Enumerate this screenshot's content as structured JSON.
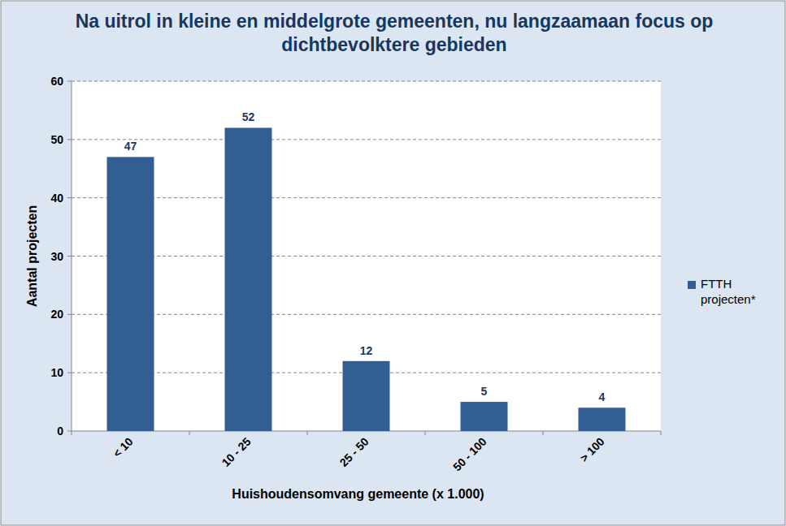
{
  "chart_data": {
    "type": "bar",
    "title": "Na uitrol in kleine en middelgrote gemeenten, nu langzaamaan focus op dichtbevolktere gebieden",
    "x_label": "Huishoudensomvang gemeente (x 1.000)",
    "y_label": "Aantal projecten",
    "categories": [
      "< 10",
      "10 - 25",
      "25 - 50",
      "50 - 100",
      "> 100"
    ],
    "series": [
      {
        "name": "FTTH projecten*",
        "color": "#335e93",
        "values": [
          47,
          52,
          12,
          5,
          4
        ]
      }
    ],
    "ylim": [
      0,
      60
    ],
    "yticks": [
      0,
      10,
      20,
      30,
      40,
      50,
      60
    ],
    "grid": true,
    "legend": "right",
    "data_labels": true
  }
}
